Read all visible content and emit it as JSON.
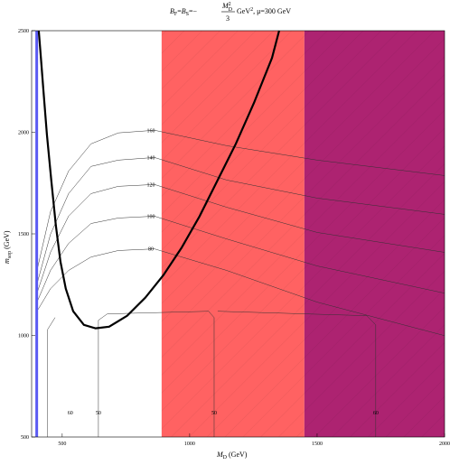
{
  "chart_data": {
    "type": "contour",
    "title": {
      "parts": [
        "B",
        "F",
        "=",
        "B",
        "S",
        "=−",
        "M",
        "2",
        "D",
        "3",
        " GeV",
        "2",
        ", μ=300 GeV"
      ]
    },
    "x_label": {
      "parts": [
        "M",
        "D",
        " (GeV)"
      ]
    },
    "y_label": {
      "parts": [
        "m",
        "sop",
        " (GeV)"
      ]
    },
    "xlim": [
      380,
      2000
    ],
    "ylim": [
      500,
      2500
    ],
    "xticks": [
      500,
      1000,
      1500,
      2000
    ],
    "yticks": [
      500,
      1000,
      1500,
      2000,
      2500
    ],
    "regions": [
      {
        "x": [
          890,
          1450
        ],
        "color": "#ff6262"
      },
      {
        "x": [
          1450,
          2000
        ],
        "color": "#ad2371"
      }
    ],
    "vline": {
      "x": 400,
      "color": "#5a5af2"
    },
    "curve": {
      "color": "#000000",
      "x": [
        408,
        415,
        426,
        440,
        457,
        475,
        493,
        514,
        543,
        585,
        631,
        684,
        755,
        826,
        897,
        968,
        1039,
        1110,
        1181,
        1252,
        1323,
        1351
      ],
      "y": [
        2500,
        2389,
        2210,
        1988,
        1765,
        1542,
        1364,
        1230,
        1119,
        1052,
        1035,
        1043,
        1097,
        1186,
        1297,
        1431,
        1587,
        1765,
        1943,
        2144,
        2366,
        2500
      ]
    },
    "contours": [
      {
        "level": 160,
        "x": [
          401,
          454,
          525,
          613,
          720,
          862,
          1145,
          1500,
          2000
        ],
        "y": [
          1320,
          1609,
          1809,
          1943,
          1997,
          2010,
          1934,
          1863,
          1787
        ]
      },
      {
        "level": 140,
        "x": [
          401,
          454,
          525,
          613,
          720,
          862,
          1145,
          1500,
          2000
        ],
        "y": [
          1253,
          1498,
          1698,
          1832,
          1863,
          1876,
          1765,
          1676,
          1596
        ]
      },
      {
        "level": 120,
        "x": [
          401,
          454,
          525,
          613,
          720,
          862,
          1145,
          1500,
          2000
        ],
        "y": [
          1208,
          1409,
          1587,
          1698,
          1734,
          1743,
          1631,
          1507,
          1409
        ]
      },
      {
        "level": 100,
        "x": [
          401,
          454,
          525,
          613,
          720,
          862,
          1145,
          1500,
          2000
        ],
        "y": [
          1164,
          1320,
          1453,
          1551,
          1578,
          1587,
          1475,
          1342,
          1208
        ]
      },
      {
        "level": 80,
        "x": [
          401,
          454,
          525,
          613,
          720,
          862,
          1145,
          1500,
          2000
        ],
        "y": [
          1119,
          1230,
          1320,
          1386,
          1418,
          1426,
          1320,
          1164,
          999
        ]
      },
      {
        "level": 60,
        "x": [
          443,
          443,
          472
        ],
        "y": [
          500,
          1030,
          1088
        ]
      },
      {
        "level": 50,
        "x": [
          642,
          642,
          677,
          1074,
          1096,
          1096
        ],
        "y": [
          500,
          1075,
          1106,
          1119,
          1088,
          500
        ]
      },
      {
        "level": 60,
        "x": [
          1110,
          1695,
          1730,
          1730
        ],
        "y": [
          1119,
          1097,
          1052,
          500
        ]
      }
    ]
  }
}
